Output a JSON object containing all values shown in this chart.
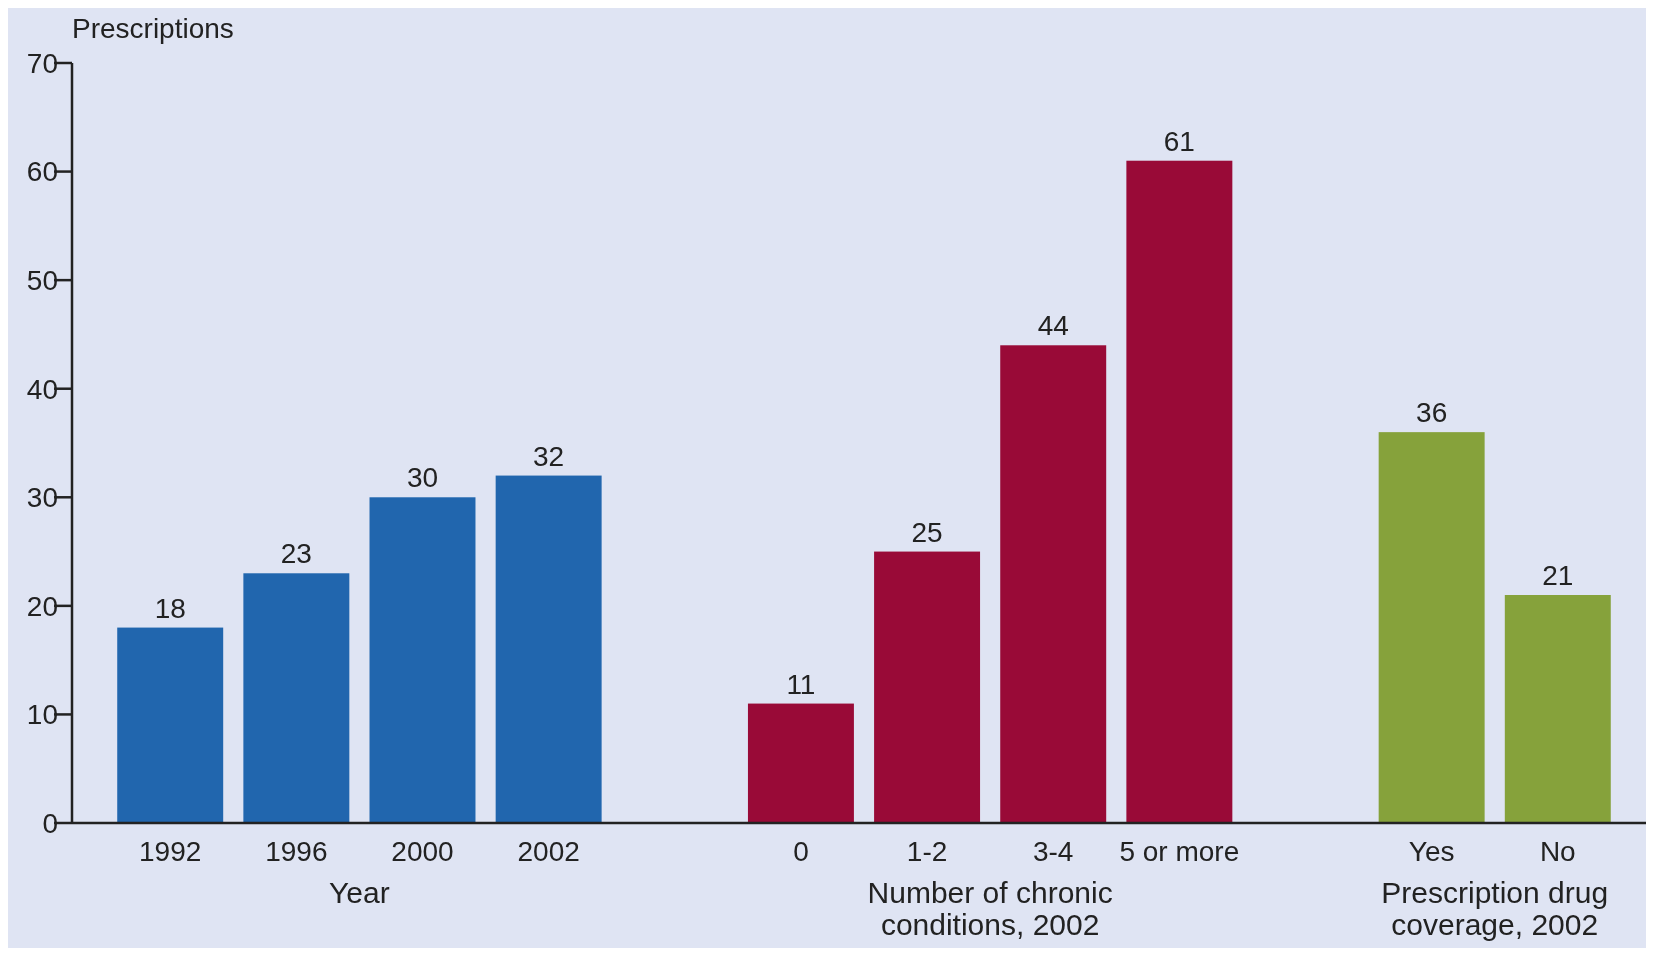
{
  "chart_data": {
    "type": "bar",
    "ylabel": "Prescriptions",
    "categories": [
      "1992",
      "1996",
      "2000",
      "2002",
      null,
      "0",
      "1-2",
      "3-4",
      "5 or more",
      null,
      "Yes",
      "No"
    ],
    "series": [
      {
        "color": "#2166ae",
        "values": [
          18,
          23,
          30,
          32,
          null,
          null,
          null,
          null,
          null,
          null,
          null,
          null
        ]
      },
      {
        "color": "#990a37",
        "values": [
          null,
          null,
          null,
          null,
          null,
          11,
          25,
          44,
          61,
          null,
          null,
          null
        ]
      },
      {
        "color": "#86a23b",
        "values": [
          null,
          null,
          null,
          null,
          null,
          null,
          null,
          null,
          null,
          null,
          36,
          21
        ]
      }
    ],
    "ylim": [
      0,
      70
    ],
    "yticks": [
      0,
      10,
      20,
      30,
      40,
      50,
      60,
      70
    ],
    "data_labels": true,
    "grid": false,
    "annotations": [
      "Year",
      "Number of chronic\nconditions,  2002",
      "Prescription drug\ncoverage, 2002"
    ]
  }
}
